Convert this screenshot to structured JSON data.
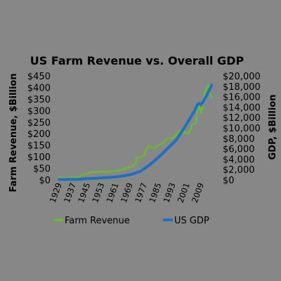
{
  "chart_data": {
    "type": "line",
    "title": "US Farm Revenue vs. Overall GDP",
    "ylabel_left": "Farm Revenue, $Billion",
    "ylabel_right": "GDP, $Billion",
    "ylim_left": [
      0,
      450
    ],
    "ylim_right": [
      0,
      20000
    ],
    "xlim": [
      1929,
      2016
    ],
    "yticks_left": [
      "$0",
      "$50",
      "$100",
      "$150",
      "$200",
      "$250",
      "$300",
      "$350",
      "$400",
      "$450"
    ],
    "yticks_right": [
      "$0",
      "$2,000",
      "$4,000",
      "$6,000",
      "$8,000",
      "$10,000",
      "$12,000",
      "$14,000",
      "$16,000",
      "$18,000",
      "$20,000"
    ],
    "xticks": [
      "1929",
      "1937",
      "1945",
      "1953",
      "1961",
      "1969",
      "1977",
      "1985",
      "1993",
      "2001",
      "2009"
    ],
    "legend_position": "bottom",
    "series": [
      {
        "name": "Farm Revenue",
        "axis": "left",
        "color": "#6db33f",
        "x": [
          1929,
          1932,
          1935,
          1940,
          1943,
          1945,
          1947,
          1950,
          1953,
          1955,
          1960,
          1965,
          1970,
          1972,
          1973,
          1975,
          1977,
          1979,
          1981,
          1983,
          1985,
          1987,
          1990,
          1993,
          1995,
          1997,
          1999,
          2000,
          2002,
          2004,
          2006,
          2007,
          2008,
          2009,
          2010,
          2011,
          2012,
          2013,
          2014,
          2015
        ],
        "values": [
          12,
          6,
          10,
          11,
          25,
          27,
          34,
          33,
          37,
          33,
          38,
          45,
          58,
          70,
          100,
          95,
          108,
          145,
          142,
          138,
          150,
          155,
          180,
          180,
          195,
          215,
          205,
          205,
          200,
          240,
          245,
          300,
          320,
          290,
          330,
          375,
          395,
          410,
          370,
          355
        ]
      },
      {
        "name": "US GDP",
        "axis": "right",
        "color": "#1f6fc6",
        "x": [
          1929,
          1932,
          1935,
          1940,
          1945,
          1950,
          1955,
          1960,
          1965,
          1970,
          1975,
          1980,
          1985,
          1990,
          1995,
          2000,
          2005,
          2007,
          2008,
          2009,
          2010,
          2012,
          2014,
          2015
        ],
        "values": [
          100,
          60,
          75,
          100,
          225,
          300,
          425,
          540,
          740,
          1070,
          1690,
          2860,
          4340,
          5980,
          7660,
          10290,
          13090,
          14480,
          14720,
          14420,
          14960,
          16160,
          17520,
          18220
        ]
      }
    ]
  }
}
